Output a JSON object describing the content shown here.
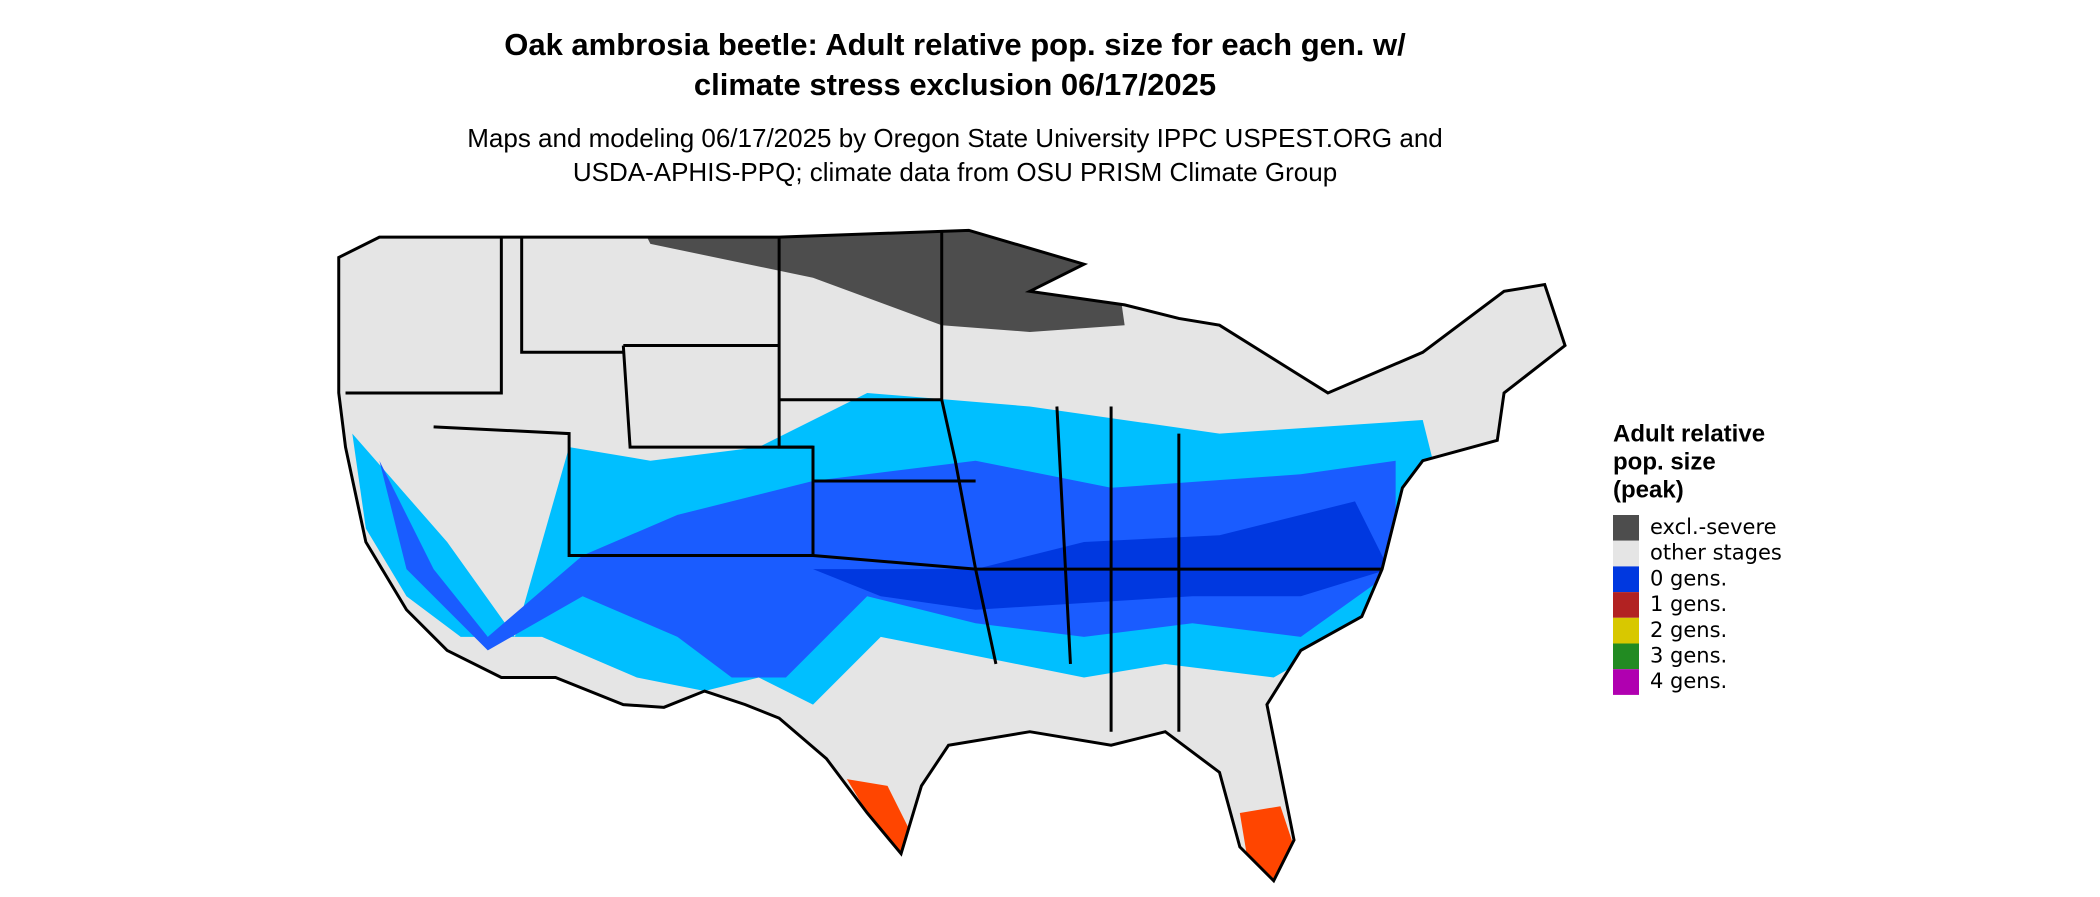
{
  "title": [
    "Oak ambrosia beetle: Adult relative pop. size for each gen. w/",
    "climate stress exclusion 06/17/2025"
  ],
  "subtitle": [
    "Maps and modeling 06/17/2025 by Oregon State University IPPC USPEST.ORG and",
    "USDA-APHIS-PPQ; climate data from OSU PRISM Climate Group"
  ],
  "legend": {
    "title": [
      "Adult relative",
      "pop. size",
      "(peak)"
    ],
    "items": [
      {
        "label": "excl.-severe",
        "color": "#4d4d4d"
      },
      {
        "label": "other stages",
        "color": "#e5e5e5"
      },
      {
        "label": "0 gens.",
        "color": "#0038e0"
      },
      {
        "label": "1 gens.",
        "color": "#b22222"
      },
      {
        "label": "2 gens.",
        "color": "#d8c800"
      },
      {
        "label": "3 gens.",
        "color": "#228b22"
      },
      {
        "label": "4 gens.",
        "color": "#b000b0"
      }
    ]
  }
}
